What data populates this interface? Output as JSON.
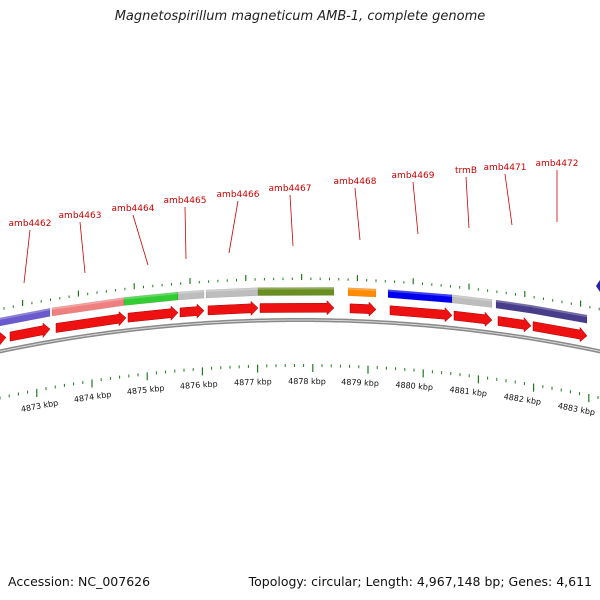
{
  "title": "Magnetospirillum magneticum AMB-1, complete genome",
  "footer": {
    "accession": "Accession: NC_007626",
    "summary": "Topology: circular; Length: 4,967,148 bp; Genes: 4,611"
  },
  "colors": {
    "feature_red": "#ee1111",
    "backbone": "#8a8a8a",
    "tick_green": "#1e7a1e",
    "label_red": "#cc0000"
  },
  "ruler": {
    "unit": "kbp",
    "labels": [
      "4873 kbp",
      "4874 kbp",
      "4875 kbp",
      "4876 kbp",
      "4877 kbp",
      "4878 kbp",
      "4879 kbp",
      "4880 kbp",
      "4881 kbp",
      "4882 kbp",
      "4883 kbp"
    ]
  },
  "genes": [
    {
      "label": "amb4462",
      "color": "#6a5acd"
    },
    {
      "label": "amb4463",
      "color": "#f08080"
    },
    {
      "label": "amb4464",
      "color": "#33cc33"
    },
    {
      "label": "amb4465",
      "color": "#bdbdbd"
    },
    {
      "label": "amb4466",
      "color": "#bdbdbd"
    },
    {
      "label": "amb4467",
      "color": "#6b8e23"
    },
    {
      "label": "amb4468",
      "color": "#ff8c00"
    },
    {
      "label": "amb4469",
      "color": "#0000ee"
    },
    {
      "label": "trmB",
      "color": "#bdbdbd"
    },
    {
      "label": "amb4471",
      "color": "#483d8b"
    },
    {
      "label": "amb4472",
      "color": "#483d8b"
    }
  ]
}
